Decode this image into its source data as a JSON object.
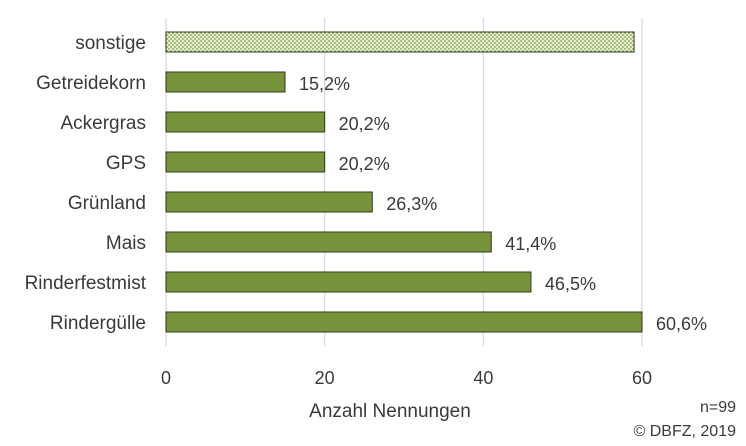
{
  "chart_data": {
    "type": "bar",
    "orientation": "horizontal",
    "categories": [
      "sonstige",
      "Getreidekorn",
      "Ackergras",
      "GPS",
      "Grünland",
      "Mais",
      "Rinderfestmist",
      "Rindergülle"
    ],
    "values": [
      59,
      15,
      20,
      20,
      26,
      41,
      46,
      60
    ],
    "data_labels": [
      "",
      "15,2%",
      "20,2%",
      "20,2%",
      "26,3%",
      "41,4%",
      "46,5%",
      "60,6%"
    ],
    "xlabel": "Anzahl Nennungen",
    "xlim": [
      0,
      60
    ],
    "xticks": [
      "0",
      "20",
      "40",
      "60"
    ],
    "grid": "vertical",
    "bar_color": "#77933c",
    "bar_border_color": "#2f3a17",
    "highlight_category": "sonstige",
    "highlight_fill": "#c3d69b",
    "footnotes": [
      "n=99",
      "© DBFZ, 2019"
    ]
  }
}
